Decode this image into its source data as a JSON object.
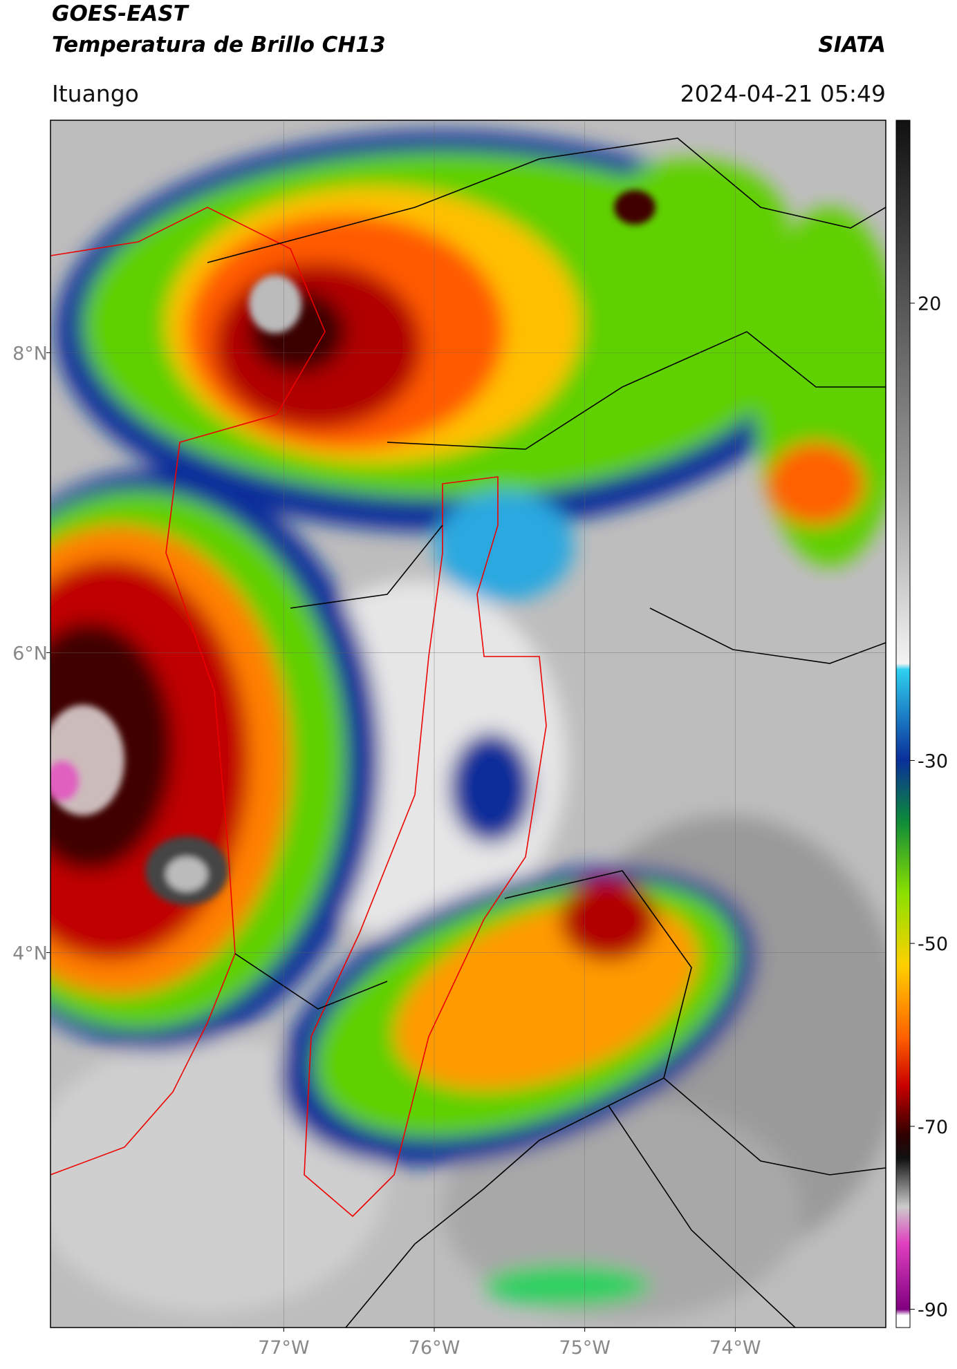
{
  "header": {
    "title": "GOES-EAST",
    "subtitle": "Temperatura de Brillo CH13",
    "source": "SIATA",
    "location": "Ituango",
    "datetime": "2024-04-21 05:49"
  },
  "map": {
    "xlim": [
      -78.55,
      -73.0
    ],
    "ylim": [
      1.5,
      9.55
    ],
    "xticks": [
      {
        "value": -77,
        "label": "77°W"
      },
      {
        "value": -76,
        "label": "76°W"
      },
      {
        "value": -75,
        "label": "75°W"
      },
      {
        "value": -74,
        "label": "74°W"
      }
    ],
    "yticks": [
      {
        "value": 8,
        "label": "8°N"
      },
      {
        "value": 6,
        "label": "6°N"
      },
      {
        "value": 4,
        "label": "4°N"
      }
    ],
    "grid": true
  },
  "colorbar": {
    "lim": [
      -92,
      40
    ],
    "ticks": [
      20,
      -30,
      -50,
      -70,
      -90
    ]
  }
}
